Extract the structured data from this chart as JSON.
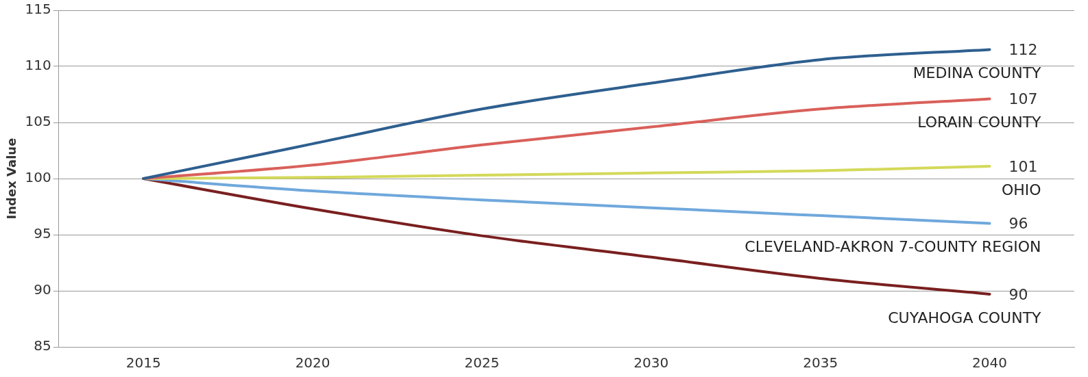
{
  "chart_data": {
    "type": "line",
    "ylabel": "Index Value",
    "categories": [
      "2015",
      "2020",
      "2025",
      "2030",
      "2035",
      "2040"
    ],
    "ylim": [
      85,
      115
    ],
    "yticks": [
      85,
      90,
      95,
      100,
      105,
      110,
      115
    ],
    "grid": "y",
    "legend": false,
    "marker": "none",
    "line_style": "solid",
    "series": [
      {
        "name": "MEDINA COUNTY",
        "color": "#2e5f8f",
        "values": [
          100,
          103.1,
          106.2,
          108.5,
          110.6,
          111.5
        ],
        "value_labels": [
          null,
          null,
          null,
          null,
          null,
          "112"
        ]
      },
      {
        "name": "LORAIN COUNTY",
        "color": "#d9605a",
        "values": [
          100,
          101.2,
          103,
          104.6,
          106.2,
          107.1
        ],
        "value_labels": [
          null,
          null,
          null,
          null,
          null,
          "107"
        ]
      },
      {
        "name": "OHIO",
        "color": "#d4d95a",
        "values": [
          100,
          100.1,
          100.3,
          100.5,
          100.7,
          101.1
        ],
        "value_labels": [
          null,
          null,
          null,
          null,
          null,
          "101"
        ]
      },
      {
        "name": "CLEVELAND-AKRON 7-COUNTY REGION",
        "color": "#6fa8dc",
        "values": [
          100,
          98.9,
          98.1,
          97.4,
          96.7,
          96
        ],
        "value_labels": [
          null,
          null,
          null,
          null,
          null,
          "96"
        ]
      },
      {
        "name": "CUYAHOGA COUNTY",
        "color": "#7a1f1f",
        "values": [
          100,
          97.3,
          94.9,
          93,
          91.1,
          89.7
        ],
        "value_labels": [
          null,
          null,
          null,
          null,
          null,
          "90"
        ]
      }
    ]
  }
}
